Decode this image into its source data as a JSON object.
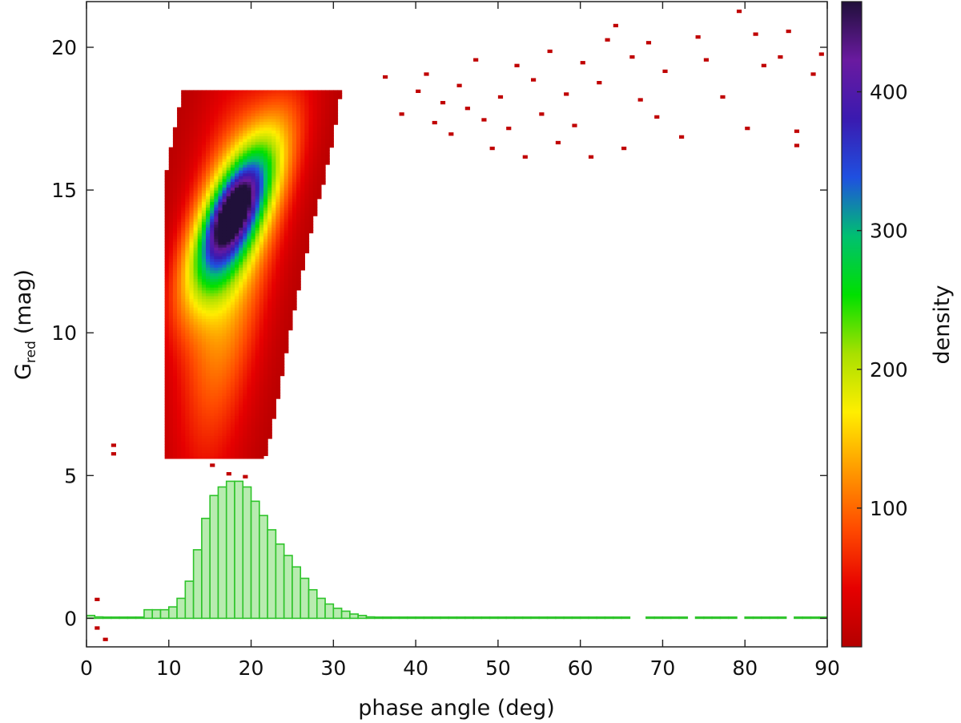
{
  "chart_data": {
    "type": "heatmap",
    "title": "",
    "xlabel": "phase angle (deg)",
    "ylabel_main": "G",
    "ylabel_sub": "red",
    "ylabel_unit": "(mag)",
    "xlim": [
      0,
      90
    ],
    "ylim": [
      -1,
      21.6
    ],
    "xticks": [
      0,
      10,
      20,
      30,
      40,
      50,
      60,
      70,
      80,
      90
    ],
    "yticks": [
      0,
      5,
      10,
      15,
      20
    ],
    "colorbar": {
      "label": "density",
      "range": [
        0,
        465
      ],
      "ticks": [
        100,
        200,
        300,
        400
      ],
      "colors": [
        "#b40000",
        "#e60000",
        "#ff4a00",
        "#ff9900",
        "#ffee00",
        "#a8e000",
        "#00e000",
        "#00c070",
        "#1f50e0",
        "#3a1ab0",
        "#6a1aa0",
        "#20103a"
      ]
    },
    "density_blobs": [
      {
        "cx": 16.5,
        "cy": 11.8,
        "sx": 5.2,
        "sy": 3.2,
        "angle": 60,
        "peak": 115
      },
      {
        "cx": 18.0,
        "cy": 14.2,
        "sx": 4.2,
        "sy": 1.3,
        "angle": 22,
        "peak": 320
      },
      {
        "cx": 17.7,
        "cy": 14.2,
        "sx": 1.8,
        "sy": 0.6,
        "angle": 18,
        "peak": 160
      },
      {
        "cx": 22.0,
        "cy": 14.5,
        "sx": 5.5,
        "sy": 2.0,
        "angle": 40,
        "peak": 45
      }
    ],
    "sparse_points_deg_mag": [
      [
        36,
        18.9
      ],
      [
        38,
        17.6
      ],
      [
        40,
        18.4
      ],
      [
        41,
        19.0
      ],
      [
        42,
        17.3
      ],
      [
        43,
        18.0
      ],
      [
        44,
        16.9
      ],
      [
        45,
        18.6
      ],
      [
        46,
        17.8
      ],
      [
        47,
        19.5
      ],
      [
        48,
        17.4
      ],
      [
        49,
        16.4
      ],
      [
        50,
        18.2
      ],
      [
        51,
        17.1
      ],
      [
        52,
        19.3
      ],
      [
        53,
        16.1
      ],
      [
        54,
        18.8
      ],
      [
        55,
        17.6
      ],
      [
        56,
        19.8
      ],
      [
        57,
        16.6
      ],
      [
        58,
        18.3
      ],
      [
        59,
        17.2
      ],
      [
        60,
        19.4
      ],
      [
        61,
        16.1
      ],
      [
        62,
        18.7
      ],
      [
        63,
        20.2
      ],
      [
        64,
        20.7
      ],
      [
        65,
        16.4
      ],
      [
        66,
        19.6
      ],
      [
        67,
        18.1
      ],
      [
        68,
        20.1
      ],
      [
        69,
        17.5
      ],
      [
        70,
        19.1
      ],
      [
        72,
        16.8
      ],
      [
        74,
        20.3
      ],
      [
        75,
        19.5
      ],
      [
        77,
        18.2
      ],
      [
        79,
        21.2
      ],
      [
        80,
        17.1
      ],
      [
        81,
        20.4
      ],
      [
        82,
        19.3
      ],
      [
        84,
        19.6
      ],
      [
        85,
        20.5
      ],
      [
        86,
        17.0
      ],
      [
        86,
        16.5
      ],
      [
        88,
        19.0
      ],
      [
        89,
        19.7
      ],
      [
        3,
        6.0
      ],
      [
        3,
        5.7
      ],
      [
        15,
        5.3
      ],
      [
        17,
        5.0
      ],
      [
        19,
        4.9
      ],
      [
        1,
        0.6
      ],
      [
        1,
        -0.4
      ],
      [
        2,
        -0.8
      ]
    ],
    "histogram": {
      "bin_width_deg": 1,
      "x_start": 0,
      "values": [
        0.1,
        0.05,
        0.0,
        0.0,
        0.0,
        0.0,
        0.0,
        0.3,
        0.3,
        0.3,
        0.4,
        0.7,
        1.3,
        2.4,
        3.5,
        4.3,
        4.6,
        4.8,
        4.8,
        4.6,
        4.1,
        3.6,
        3.1,
        2.6,
        2.2,
        1.8,
        1.4,
        1.0,
        0.7,
        0.5,
        0.35,
        0.25,
        0.15,
        0.1,
        0.05,
        0.02,
        0.02,
        0.02,
        0.02,
        0.02,
        0.02,
        0.02,
        0.02,
        0.02,
        0.02,
        0.02,
        0.02,
        0.02,
        0.02,
        0.02,
        0.02,
        0.02,
        0.02,
        0.02,
        0.02,
        0.02,
        0.02,
        0.02,
        0.02,
        0.02,
        0.02,
        0.02,
        0.02,
        0.02,
        0.02,
        0.02,
        0.02,
        0.02,
        0.02,
        0.02,
        0.02,
        0.02,
        0.02,
        0.02,
        0.02,
        0.02,
        0.02,
        0.02,
        0.02,
        0.02,
        0.02,
        0.02,
        0.02,
        0.02,
        0.02,
        0.02,
        0.02,
        0.02,
        0.02,
        0.02
      ],
      "fill": "#b8ebb0",
      "edge": "#2ec42a"
    },
    "gaps_deg": [
      66,
      67,
      73,
      79,
      85
    ]
  }
}
